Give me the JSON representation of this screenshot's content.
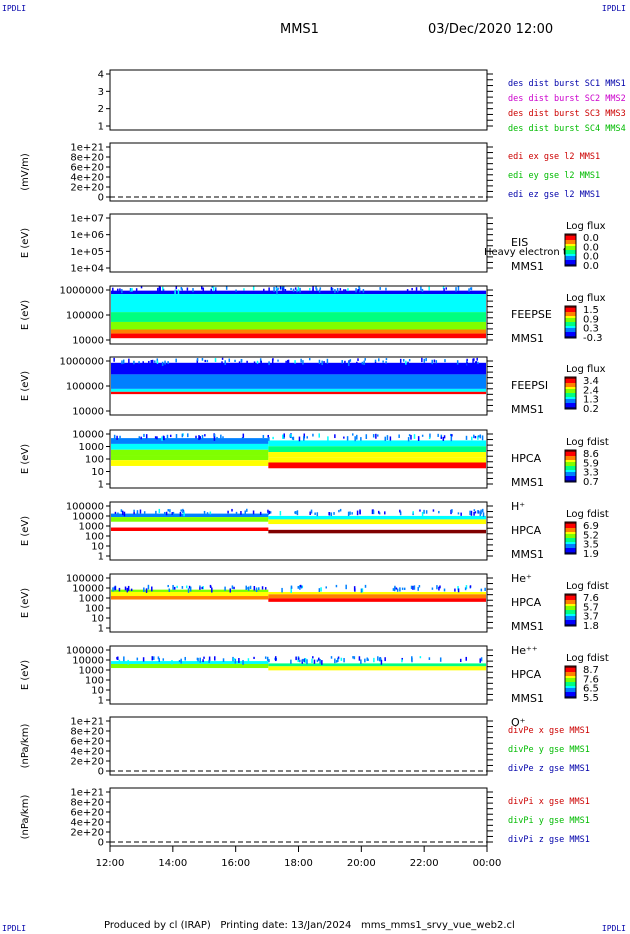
{
  "corner_left_top": "IPDLI",
  "corner_right_top": "IPDLI",
  "corner_left_bottom": "IPDLI",
  "corner_right_bottom": "IPDLI",
  "header": {
    "spacecraft": "MMS1",
    "datetime": "03/Dec/2020 12:00"
  },
  "footer": {
    "producer": "Produced by cl (IRAP)",
    "printing": "Printing date: 13/Jan/2024",
    "file": "mms_mms1_srvy_vue_web2.cl"
  },
  "colors": {
    "blue": "#0000aa",
    "magenta": "#cc00cc",
    "red": "#cc0000",
    "green": "#00bb00",
    "colormap": [
      "#000080",
      "#0000ff",
      "#0080ff",
      "#00ffff",
      "#00ff80",
      "#80ff00",
      "#ffff00",
      "#ff8000",
      "#ff0000",
      "#800000"
    ]
  },
  "chart_data": [
    {
      "type": "line",
      "name": "sc-distance",
      "y_ticks": [
        "4",
        "3",
        "2",
        "1"
      ],
      "legend": [
        {
          "text": "des dist burst SC1 MMS1",
          "color": "#0000aa"
        },
        {
          "text": "des dist burst SC2 MMS2",
          "color": "#cc00cc"
        },
        {
          "text": "des dist burst SC3 MMS3",
          "color": "#cc0000"
        },
        {
          "text": "des dist burst SC4 MMS4",
          "color": "#00bb00"
        }
      ]
    },
    {
      "type": "line",
      "name": "edi-field",
      "ylabel": "(mV/m)",
      "y_ticks": [
        "1e+21",
        "8e+20",
        "6e+20",
        "4e+20",
        "2e+20",
        "0"
      ],
      "legend": [
        {
          "text": "edi ex gse l2 MMS1",
          "color": "#cc0000"
        },
        {
          "text": "edi ey gse l2 MMS1",
          "color": "#00bb00"
        },
        {
          "text": "edi ez gse l2 MMS1",
          "color": "#0000aa"
        }
      ]
    },
    {
      "type": "heatmap",
      "name": "eis",
      "ylabel": "E (eV)",
      "y_ticks": [
        "1e+07",
        "1e+06",
        "1e+05",
        "1e+04"
      ],
      "side_labels": [
        "EIS",
        "MMS1"
      ],
      "overlay": "Heavy electron to",
      "colorbar_title": "Log flux",
      "colorbar_ticks": [
        "0.0",
        "0.0",
        "0.0",
        "0.0"
      ],
      "bands": []
    },
    {
      "type": "heatmap",
      "name": "feepse",
      "ylabel": "E (eV)",
      "y_ticks": [
        "1000000",
        "100000",
        "10000"
      ],
      "side_labels": [
        "FEEPSE",
        "MMS1"
      ],
      "colorbar_title": "Log flux",
      "colorbar_ticks": [
        "1.5",
        "0.9",
        "0.3",
        "-0.3"
      ],
      "bands": [
        [
          0.08,
          0.14,
          0.15
        ],
        [
          0.14,
          0.45,
          0.3
        ],
        [
          0.45,
          0.62,
          0.45
        ],
        [
          0.62,
          0.75,
          0.6
        ],
        [
          0.75,
          0.82,
          0.75
        ],
        [
          0.82,
          0.9,
          0.9
        ]
      ]
    },
    {
      "type": "heatmap",
      "name": "feepsi",
      "ylabel": "E (eV)",
      "y_ticks": [
        "1000000",
        "100000",
        "10000"
      ],
      "side_labels": [
        "FEEPSI",
        "MMS1"
      ],
      "colorbar_title": "Log flux",
      "colorbar_ticks": [
        "3.4",
        "2.4",
        "1.3",
        "0.2"
      ],
      "bands": [
        [
          0.1,
          0.3,
          0.12
        ],
        [
          0.3,
          0.55,
          0.18
        ],
        [
          0.55,
          0.6,
          0.35
        ],
        [
          0.6,
          0.64,
          0.9
        ]
      ]
    },
    {
      "type": "heatmap",
      "name": "hpca-h",
      "ylabel": "E (eV)",
      "y_ticks": [
        "10000",
        "1000",
        "100",
        "10",
        "1"
      ],
      "side_labels": [
        "HPCA",
        "MMS1",
        "H⁺"
      ],
      "colorbar_title": "Log fdist",
      "colorbar_ticks": [
        "8.6",
        "5.9",
        "3.3",
        "0.7"
      ],
      "bands": [
        [
          0.14,
          0.24,
          0.2
        ],
        [
          0.24,
          0.34,
          0.35
        ],
        [
          0.34,
          0.44,
          0.5
        ],
        [
          0.44,
          0.52,
          0.6
        ],
        [
          0.52,
          0.62,
          0.72
        ]
      ]
    },
    {
      "type": "heatmap",
      "name": "hpca-he",
      "ylabel": "E (eV)",
      "y_ticks": [
        "100000",
        "10000",
        "1000",
        "100",
        "10",
        "1"
      ],
      "side_labels": [
        "HPCA",
        "MMS1",
        "He⁺"
      ],
      "colorbar_title": "Log fdist",
      "colorbar_ticks": [
        "6.9",
        "5.2",
        "3.5",
        "1.9"
      ],
      "bands": [
        [
          0.2,
          0.26,
          0.25
        ],
        [
          0.26,
          0.34,
          0.55
        ],
        [
          0.44,
          0.5,
          0.88
        ]
      ]
    },
    {
      "type": "heatmap",
      "name": "hpca-he2",
      "ylabel": "E (eV)",
      "y_ticks": [
        "100000",
        "10000",
        "1000",
        "100",
        "10",
        "1"
      ],
      "side_labels": [
        "HPCA",
        "MMS1",
        "He⁺⁺"
      ],
      "colorbar_title": "Log fdist",
      "colorbar_ticks": [
        "7.6",
        "5.7",
        "3.7",
        "1.8"
      ],
      "bands": [
        [
          0.27,
          0.31,
          0.5
        ],
        [
          0.31,
          0.38,
          0.68
        ],
        [
          0.38,
          0.44,
          0.8
        ]
      ]
    },
    {
      "type": "heatmap",
      "name": "hpca-o",
      "ylabel": "E (eV)",
      "y_ticks": [
        "100000",
        "10000",
        "1000",
        "100",
        "10",
        "1"
      ],
      "side_labels": [
        "HPCA",
        "MMS1",
        "O⁺"
      ],
      "colorbar_title": "Log fdist",
      "colorbar_ticks": [
        "8.7",
        "7.6",
        "6.5",
        "5.5"
      ],
      "bands": [
        [
          0.26,
          0.31,
          0.35
        ],
        [
          0.31,
          0.38,
          0.55
        ]
      ]
    },
    {
      "type": "line",
      "name": "divpe",
      "ylabel": "(nPa/km)",
      "y_ticks": [
        "1e+21",
        "8e+20",
        "6e+20",
        "4e+20",
        "2e+20",
        "0"
      ],
      "legend": [
        {
          "text": "divPe x gse MMS1",
          "color": "#cc0000"
        },
        {
          "text": "divPe y gse MMS1",
          "color": "#00bb00"
        },
        {
          "text": "divPe z gse MMS1",
          "color": "#0000aa"
        }
      ]
    },
    {
      "type": "line",
      "name": "divpi",
      "ylabel": "(nPa/km)",
      "y_ticks": [
        "1e+21",
        "8e+20",
        "6e+20",
        "4e+20",
        "2e+20",
        "0"
      ],
      "legend": [
        {
          "text": "divPi x gse MMS1",
          "color": "#cc0000"
        },
        {
          "text": "divPi y gse MMS1",
          "color": "#00bb00"
        },
        {
          "text": "divPi z gse MMS1",
          "color": "#0000aa"
        }
      ]
    }
  ],
  "x_axis": {
    "ticks": [
      "12:00",
      "14:00",
      "16:00",
      "18:00",
      "20:00",
      "22:00",
      "00:00"
    ]
  }
}
